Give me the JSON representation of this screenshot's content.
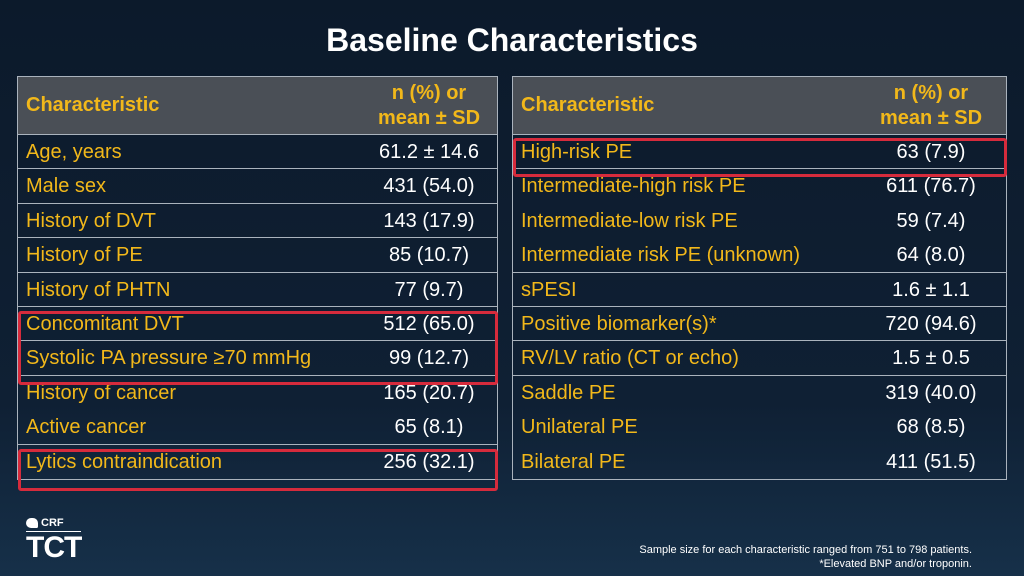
{
  "title": "Baseline Characteristics",
  "left_table": {
    "header": {
      "name": "Characteristic",
      "value_line1": "n (%) or",
      "value_line2": "mean ± SD"
    },
    "rows": [
      {
        "name": "Age, years",
        "value": "61.2 ± 14.6"
      },
      {
        "name": "Male sex",
        "value": "431 (54.0)"
      },
      {
        "name": "History of DVT",
        "value": "143 (17.9)"
      },
      {
        "name": "History of PE",
        "value": "85 (10.7)"
      },
      {
        "name": "History of PHTN",
        "value": "77 (9.7)"
      },
      {
        "name": "Concomitant DVT",
        "value": "512 (65.0)"
      },
      {
        "name": "Systolic PA pressure ≥70 mmHg",
        "value": "99 (12.7)"
      },
      {
        "name": "History of cancer",
        "value": "165 (20.7)"
      },
      {
        "name": "Active cancer",
        "value": "65 (8.1)"
      },
      {
        "name": "Lytics contraindication",
        "value": "256 (32.1)"
      }
    ]
  },
  "right_table": {
    "header": {
      "name": "Characteristic",
      "value_line1": "n (%) or",
      "value_line2": "mean ± SD"
    },
    "rows": [
      {
        "name": "High-risk PE",
        "value": "63 (7.9)"
      },
      {
        "name": "Intermediate-high risk PE",
        "value": "611 (76.7)"
      },
      {
        "name": "Intermediate-low risk PE",
        "value": "59 (7.4)"
      },
      {
        "name": "Intermediate risk PE (unknown)",
        "value": "64 (8.0)"
      },
      {
        "name": "sPESI",
        "value": "1.6 ± 1.1"
      },
      {
        "name": "Positive biomarker(s)*",
        "value": "720 (94.6)"
      },
      {
        "name": "RV/LV ratio (CT or echo)",
        "value": "1.5 ± 0.5"
      },
      {
        "name": "Saddle PE",
        "value": "319 (40.0)"
      },
      {
        "name": "Unilateral PE",
        "value": "68 (8.5)"
      },
      {
        "name": "Bilateral PE",
        "value": "411 (51.5)"
      }
    ]
  },
  "logo": {
    "crf": "CRF",
    "tct": "TCT"
  },
  "footnotes": {
    "line1": "Sample size for each characteristic ranged from 751 to 798 patients.",
    "line2": "*Elevated BNP and/or troponin."
  },
  "colors": {
    "accent": "#f2b81a",
    "highlight": "#d62b3c",
    "header_bg": "#4a4f56"
  }
}
